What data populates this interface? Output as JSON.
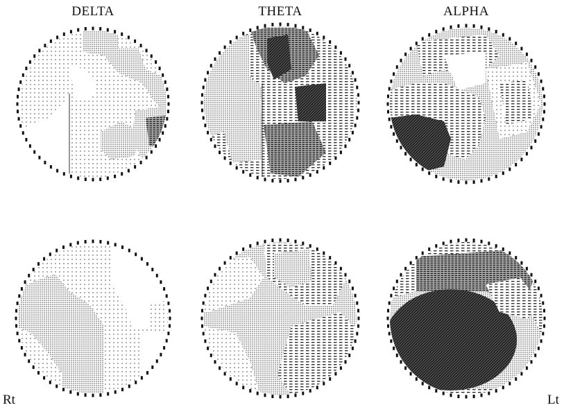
{
  "labels": {
    "bands": [
      "DELTA",
      "THETA",
      "ALPHA"
    ],
    "right_side": "Rt",
    "left_side": "Lt"
  },
  "legend_tones": [
    "blank",
    "sparse-dots",
    "dense-dots",
    "dashes",
    "dark-dashes",
    "dark-hatch"
  ],
  "maps": [
    {
      "row": "top",
      "band": "DELTA"
    },
    {
      "row": "top",
      "band": "THETA"
    },
    {
      "row": "top",
      "band": "ALPHA"
    },
    {
      "row": "bottom",
      "band": "DELTA"
    },
    {
      "row": "bottom",
      "band": "THETA"
    },
    {
      "row": "bottom",
      "band": "ALPHA"
    }
  ]
}
